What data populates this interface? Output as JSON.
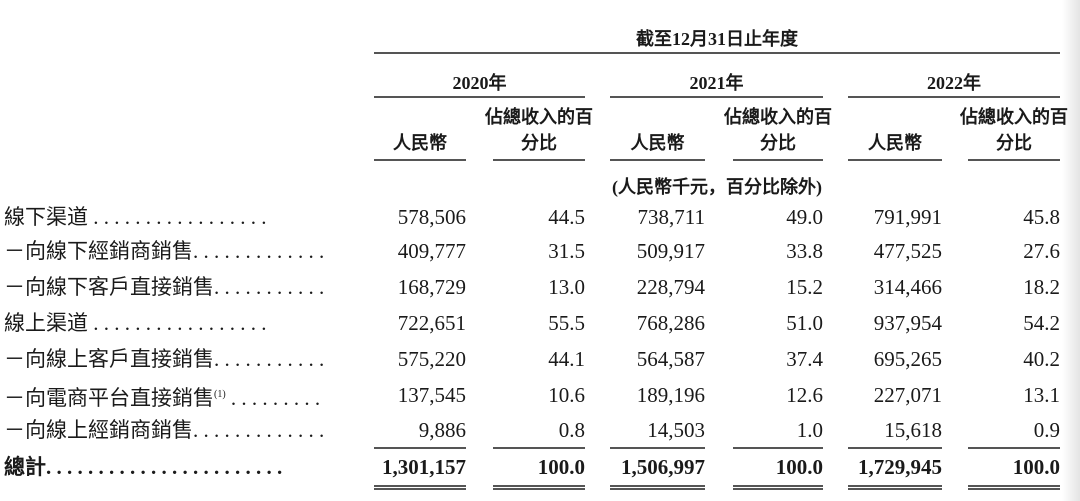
{
  "header": {
    "period": "截至12月31日止年度",
    "years": [
      "2020年",
      "2021年",
      "2022年"
    ],
    "col_rmb": "人民幣",
    "col_pct_line1": "佔總收入的百",
    "col_pct_line2": "分比",
    "unit_note": "(人民幣千元，百分比除外)"
  },
  "rows": [
    {
      "label": "線下渠道 . . . . . . . . . . . . . . . . .",
      "values": [
        "578,506",
        "44.5",
        "738,711",
        "49.0",
        "791,991",
        "45.8"
      ]
    },
    {
      "label": "－向線下經銷商銷售. . . . . . . . . . . . .",
      "values": [
        "409,777",
        "31.5",
        "509,917",
        "33.8",
        "477,525",
        "27.6"
      ]
    },
    {
      "label": "－向線下客戶直接銷售. . . . . . . . . . .",
      "values": [
        "168,729",
        "13.0",
        "228,794",
        "15.2",
        "314,466",
        "18.2"
      ]
    },
    {
      "label": "線上渠道 . . . . . . . . . . . . . . . . .",
      "values": [
        "722,651",
        "55.5",
        "768,286",
        "51.0",
        "937,954",
        "54.2"
      ]
    },
    {
      "label": "－向線上客戶直接銷售. . . . . . . . . . .",
      "values": [
        "575,220",
        "44.1",
        "564,587",
        "37.4",
        "695,265",
        "40.2"
      ]
    },
    {
      "label": "－向電商平台直接銷售",
      "note": "(1)",
      "dots": " . . . . . . . . .",
      "values": [
        "137,545",
        "10.6",
        "189,196",
        "12.6",
        "227,071",
        "13.1"
      ]
    },
    {
      "label": "－向線上經銷商銷售. . . . . . . . . . . . .",
      "values": [
        "9,886",
        "0.8",
        "14,503",
        "1.0",
        "15,618",
        "0.9"
      ]
    }
  ],
  "total": {
    "label": "總計. . . . . . . . . . . . . . . . . . . . . . .",
    "values": [
      "1,301,157",
      "100.0",
      "1,506,997",
      "100.0",
      "1,729,945",
      "100.0"
    ]
  }
}
